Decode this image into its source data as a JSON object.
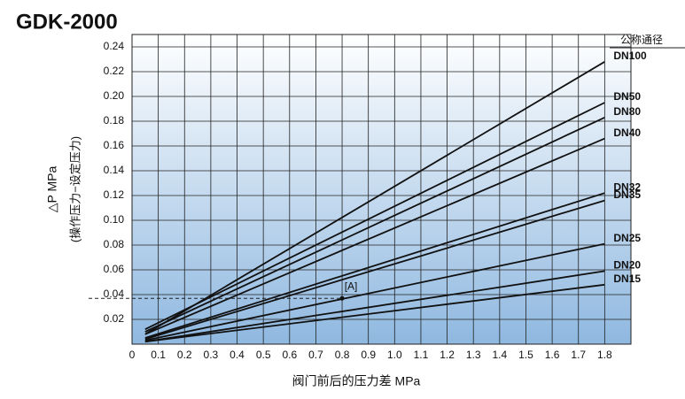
{
  "chart_data": {
    "type": "line",
    "title": "GDK-2000",
    "y_label": "△P MPa",
    "y_label_sub": "(操作压力−设定压力)",
    "x_label": "阀门前后的压力差 MPa",
    "legend_title": "公称通径",
    "x": [
      0.05,
      1.8
    ],
    "series": [
      {
        "name": "DN100",
        "color": "#111111",
        "values": [
          0.008,
          0.228
        ]
      },
      {
        "name": "DN50",
        "color": "#111111",
        "values": [
          0.012,
          0.195
        ]
      },
      {
        "name": "DN80",
        "color": "#111111",
        "values": [
          0.01,
          0.183
        ]
      },
      {
        "name": "DN40",
        "color": "#111111",
        "values": [
          0.008,
          0.166
        ]
      },
      {
        "name": "DN32",
        "color": "#111111",
        "values": [
          0.005,
          0.122
        ]
      },
      {
        "name": "DN35",
        "color": "#111111",
        "values": [
          0.004,
          0.116
        ]
      },
      {
        "name": "DN25",
        "color": "#111111",
        "values": [
          0.003,
          0.081
        ]
      },
      {
        "name": "DN20",
        "color": "#111111",
        "values": [
          0.002,
          0.059
        ]
      },
      {
        "name": "DN15",
        "color": "#111111",
        "values": [
          0.002,
          0.048
        ]
      }
    ],
    "annotation": {
      "label": "[A]",
      "x": 0.8,
      "y": 0.037
    },
    "xlim": [
      0,
      1.9
    ],
    "ylim": [
      0,
      0.25
    ],
    "xticks": [
      0,
      0.1,
      0.2,
      0.3,
      0.4,
      0.5,
      0.6,
      0.7,
      0.8,
      0.9,
      {
        "value": 1,
        "label": "1.0"
      },
      1.1,
      1.2,
      1.3,
      1.4,
      1.5,
      1.6,
      1.7,
      1.8
    ],
    "yticks": [
      0.02,
      0.04,
      0.06,
      0.08,
      {
        "value": 0.1,
        "label": "0.10"
      },
      0.12,
      0.14,
      0.16,
      0.18,
      {
        "value": 0.2,
        "label": "0.20"
      },
      0.22,
      0.24
    ],
    "grid": true
  }
}
